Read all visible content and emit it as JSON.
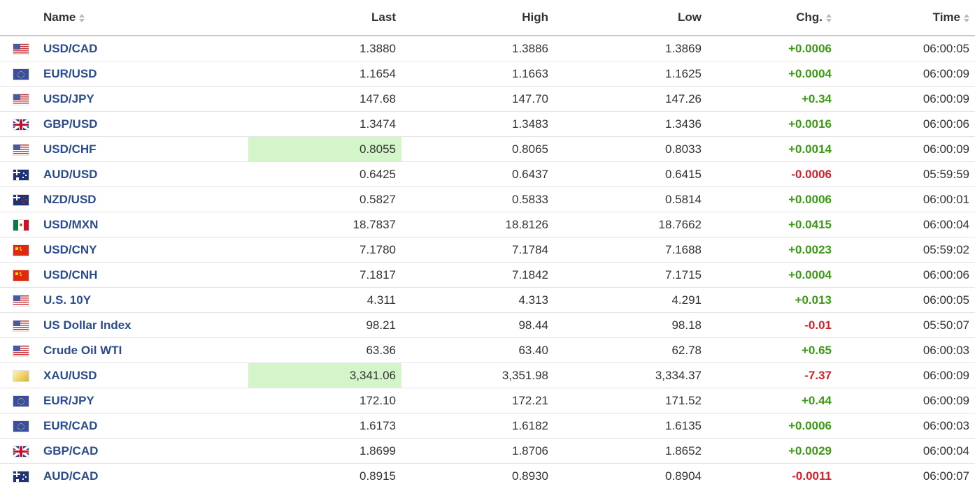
{
  "columns": {
    "name": "Name",
    "last": "Last",
    "high": "High",
    "low": "Low",
    "chg": "Chg.",
    "time": "Time"
  },
  "colors": {
    "positive": "#3c9a15",
    "negative": "#d3222a",
    "link": "#2a4b8d",
    "flash": "#d3f5c9"
  },
  "rows": [
    {
      "flag": "us-flag-icon",
      "name": "USD/CAD",
      "last": "1.3880",
      "high": "1.3886",
      "low": "1.3869",
      "chg": "+0.0006",
      "dir": "up",
      "time": "06:00:05",
      "flash": false
    },
    {
      "flag": "eu-flag-icon",
      "name": "EUR/USD",
      "last": "1.1654",
      "high": "1.1663",
      "low": "1.1625",
      "chg": "+0.0004",
      "dir": "up",
      "time": "06:00:09",
      "flash": false
    },
    {
      "flag": "us-flag-icon",
      "name": "USD/JPY",
      "last": "147.68",
      "high": "147.70",
      "low": "147.26",
      "chg": "+0.34",
      "dir": "up",
      "time": "06:00:09",
      "flash": false
    },
    {
      "flag": "uk-flag-icon",
      "name": "GBP/USD",
      "last": "1.3474",
      "high": "1.3483",
      "low": "1.3436",
      "chg": "+0.0016",
      "dir": "up",
      "time": "06:00:06",
      "flash": false
    },
    {
      "flag": "us-flag-icon",
      "name": "USD/CHF",
      "last": "0.8055",
      "high": "0.8065",
      "low": "0.8033",
      "chg": "+0.0014",
      "dir": "up",
      "time": "06:00:09",
      "flash": true
    },
    {
      "flag": "au-flag-icon",
      "name": "AUD/USD",
      "last": "0.6425",
      "high": "0.6437",
      "low": "0.6415",
      "chg": "-0.0006",
      "dir": "down",
      "time": "05:59:59",
      "flash": false
    },
    {
      "flag": "nz-flag-icon",
      "name": "NZD/USD",
      "last": "0.5827",
      "high": "0.5833",
      "low": "0.5814",
      "chg": "+0.0006",
      "dir": "up",
      "time": "06:00:01",
      "flash": false
    },
    {
      "flag": "mx-flag-icon",
      "name": "USD/MXN",
      "last": "18.7837",
      "high": "18.8126",
      "low": "18.7662",
      "chg": "+0.0415",
      "dir": "up",
      "time": "06:00:04",
      "flash": false
    },
    {
      "flag": "cn-flag-icon",
      "name": "USD/CNY",
      "last": "7.1780",
      "high": "7.1784",
      "low": "7.1688",
      "chg": "+0.0023",
      "dir": "up",
      "time": "05:59:02",
      "flash": false
    },
    {
      "flag": "cn-flag-icon",
      "name": "USD/CNH",
      "last": "7.1817",
      "high": "7.1842",
      "low": "7.1715",
      "chg": "+0.0004",
      "dir": "up",
      "time": "06:00:06",
      "flash": false
    },
    {
      "flag": "us-flag-icon",
      "name": "U.S. 10Y",
      "last": "4.311",
      "high": "4.313",
      "low": "4.291",
      "chg": "+0.013",
      "dir": "up",
      "time": "06:00:05",
      "flash": false
    },
    {
      "flag": "us-flag-icon",
      "name": "US Dollar Index",
      "last": "98.21",
      "high": "98.44",
      "low": "98.18",
      "chg": "-0.01",
      "dir": "down",
      "time": "05:50:07",
      "flash": false
    },
    {
      "flag": "us-flag-icon",
      "name": "Crude Oil WTI",
      "last": "63.36",
      "high": "63.40",
      "low": "62.78",
      "chg": "+0.65",
      "dir": "up",
      "time": "06:00:03",
      "flash": false
    },
    {
      "flag": "gold-icon",
      "name": "XAU/USD",
      "last": "3,341.06",
      "high": "3,351.98",
      "low": "3,334.37",
      "chg": "-7.37",
      "dir": "down",
      "time": "06:00:09",
      "flash": true
    },
    {
      "flag": "eu-flag-icon",
      "name": "EUR/JPY",
      "last": "172.10",
      "high": "172.21",
      "low": "171.52",
      "chg": "+0.44",
      "dir": "up",
      "time": "06:00:09",
      "flash": false
    },
    {
      "flag": "eu-flag-icon",
      "name": "EUR/CAD",
      "last": "1.6173",
      "high": "1.6182",
      "low": "1.6135",
      "chg": "+0.0006",
      "dir": "up",
      "time": "06:00:03",
      "flash": false
    },
    {
      "flag": "uk-flag-icon",
      "name": "GBP/CAD",
      "last": "1.8699",
      "high": "1.8706",
      "low": "1.8652",
      "chg": "+0.0029",
      "dir": "up",
      "time": "06:00:04",
      "flash": false
    },
    {
      "flag": "au-flag-icon",
      "name": "AUD/CAD",
      "last": "0.8915",
      "high": "0.8930",
      "low": "0.8904",
      "chg": "-0.0011",
      "dir": "down",
      "time": "06:00:07",
      "flash": false
    }
  ]
}
